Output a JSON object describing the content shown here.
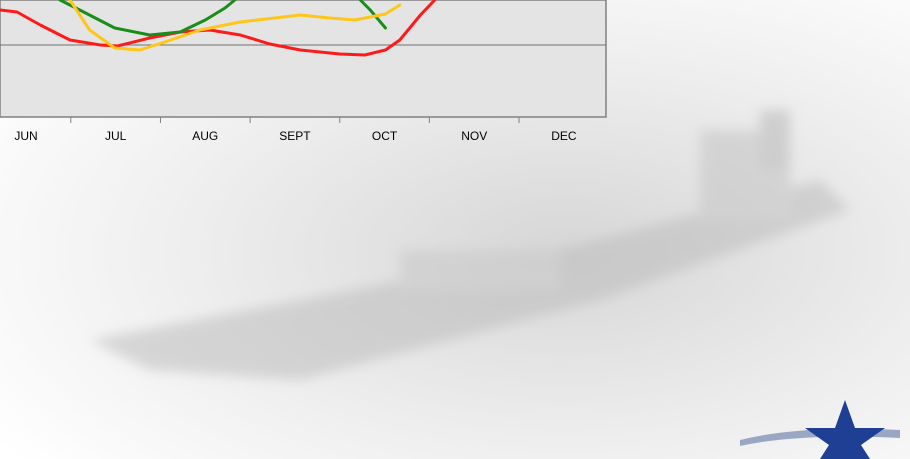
{
  "chart_data": {
    "type": "line",
    "categories": [
      "JUN",
      "JUL",
      "AUG",
      "SEPT",
      "OCT",
      "NOV",
      "DEC"
    ],
    "xlim": [
      -0.29,
      6.47
    ],
    "ylim": [
      0,
      58.5
    ],
    "gridlines": [
      36
    ],
    "series": [
      {
        "color": "#ff1a1a",
        "x": [
          -0.29,
          -0.1,
          0.16,
          0.49,
          0.83,
          1.02,
          1.38,
          1.72,
          2.05,
          2.39,
          2.72,
          3.06,
          3.5,
          3.78,
          4.01,
          4.17,
          4.4,
          4.56
        ],
        "values": [
          53.5,
          52.5,
          46,
          38.5,
          36,
          35.5,
          39.5,
          42.5,
          43.5,
          41,
          36.5,
          33.5,
          31.5,
          31,
          33.5,
          38.5,
          51,
          58.5
        ]
      },
      {
        "color": "#1a8c1a",
        "x": [
          0.38,
          0.6,
          0.99,
          1.38,
          1.72,
          2.0,
          2.22,
          2.33,
          null,
          3.73,
          3.84,
          4.01
        ],
        "values": [
          58.5,
          53.5,
          44.5,
          41,
          42.5,
          48.5,
          54.5,
          58.5,
          null,
          58.5,
          53.5,
          44.5
        ]
      },
      {
        "color": "#ffc61a",
        "x": [
          0.49,
          0.71,
          0.99,
          1.27,
          1.55,
          1.94,
          2.39,
          3.06,
          3.39,
          3.67,
          4.01,
          4.17
        ],
        "values": [
          58.5,
          43.5,
          34.5,
          33.5,
          37.5,
          43.5,
          47.5,
          51,
          49.5,
          48.5,
          51.5,
          56
        ]
      }
    ]
  }
}
